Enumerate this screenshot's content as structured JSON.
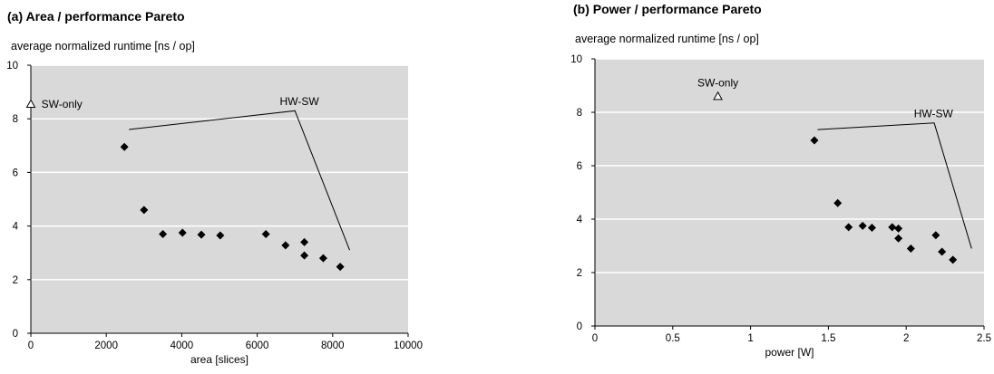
{
  "chart_data": [
    {
      "type": "scatter",
      "title": "(a) Area / performance Pareto",
      "ylabel": "average normalized runtime  [ns / op]",
      "xlabel": "area [slices]",
      "xlim": [
        0,
        10000
      ],
      "ylim": [
        0,
        10
      ],
      "xticks": [
        "0",
        "2000",
        "4000",
        "6000",
        "8000",
        "10000"
      ],
      "yticks": [
        "0",
        "2",
        "4",
        "6",
        "8",
        "10"
      ],
      "grid": true,
      "background": "#d9d9d9",
      "series": [
        {
          "name": "HW-SW",
          "marker": "filled-diamond",
          "points": [
            [
              2480,
              6.95
            ],
            [
              3000,
              4.6
            ],
            [
              3500,
              3.7
            ],
            [
              4020,
              3.75
            ],
            [
              4520,
              3.68
            ],
            [
              5020,
              3.65
            ],
            [
              6230,
              3.7
            ],
            [
              6750,
              3.28
            ],
            [
              7250,
              3.4
            ],
            [
              7250,
              2.9
            ],
            [
              7750,
              2.8
            ],
            [
              8200,
              2.48
            ]
          ]
        },
        {
          "name": "SW-only",
          "marker": "open-triangle",
          "points": [
            [
              0,
              8.55
            ]
          ]
        }
      ],
      "annotations": [
        {
          "text": "SW-only",
          "x": 280,
          "y": 8.55
        },
        {
          "text": "HW-SW",
          "x": 6600,
          "y": 8.65
        }
      ],
      "callout_line": [
        [
          2600,
          7.6
        ],
        [
          7000,
          8.3
        ],
        [
          8450,
          3.1
        ]
      ]
    },
    {
      "type": "scatter",
      "title": "(b) Power / performance Pareto",
      "ylabel": "average normalized runtime  [ns / op]",
      "xlabel": "power [W]",
      "xlim": [
        0,
        2.5
      ],
      "ylim": [
        0,
        10
      ],
      "xticks": [
        "0",
        "0.5",
        "1",
        "1.5",
        "2",
        "2.5"
      ],
      "yticks": [
        "0",
        "2",
        "4",
        "6",
        "8",
        "10"
      ],
      "grid": true,
      "background": "#d9d9d9",
      "series": [
        {
          "name": "HW-SW",
          "marker": "filled-diamond",
          "points": [
            [
              1.41,
              6.95
            ],
            [
              1.56,
              4.6
            ],
            [
              1.63,
              3.7
            ],
            [
              1.72,
              3.75
            ],
            [
              1.78,
              3.68
            ],
            [
              1.91,
              3.7
            ],
            [
              1.95,
              3.65
            ],
            [
              1.95,
              3.28
            ],
            [
              2.03,
              2.9
            ],
            [
              2.19,
              3.4
            ],
            [
              2.23,
              2.78
            ],
            [
              2.3,
              2.48
            ]
          ]
        },
        {
          "name": "SW-only",
          "marker": "open-triangle",
          "points": [
            [
              0.79,
              8.6
            ]
          ]
        }
      ],
      "annotations": [
        {
          "text": "SW-only",
          "x": 0.79,
          "y": 9.1
        },
        {
          "text": "HW-SW",
          "x": 2.05,
          "y": 7.95
        }
      ],
      "callout_line": [
        [
          1.43,
          7.35
        ],
        [
          2.18,
          7.6
        ],
        [
          2.42,
          2.9
        ]
      ]
    }
  ]
}
